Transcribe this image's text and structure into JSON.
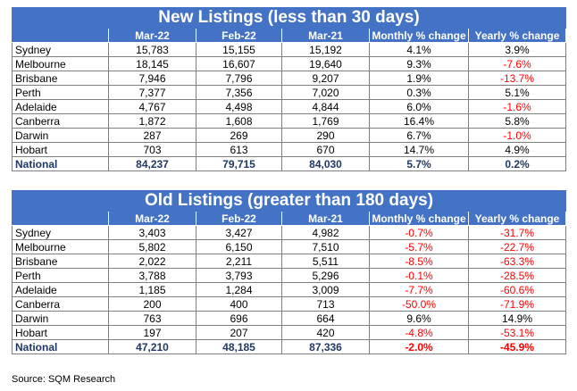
{
  "columns": [
    "",
    "Mar-22",
    "Feb-22",
    "Mar-21",
    "Monthly % change",
    "Yearly % change"
  ],
  "tables": [
    {
      "title": "New Listings (less than 30 days)",
      "rows": [
        {
          "city": "Sydney",
          "values": [
            "15,783",
            "15,155",
            "15,192",
            "4.1%",
            "3.9%"
          ]
        },
        {
          "city": "Melbourne",
          "values": [
            "18,145",
            "16,607",
            "19,640",
            "9.3%",
            "-7.6%"
          ]
        },
        {
          "city": "Brisbane",
          "values": [
            "7,946",
            "7,796",
            "9,207",
            "1.9%",
            "-13.7%"
          ]
        },
        {
          "city": "Perth",
          "values": [
            "7,377",
            "7,356",
            "7,020",
            "0.3%",
            "5.1%"
          ]
        },
        {
          "city": "Adelaide",
          "values": [
            "4,767",
            "4,498",
            "4,844",
            "6.0%",
            "-1.6%"
          ]
        },
        {
          "city": "Canberra",
          "values": [
            "1,872",
            "1,608",
            "1,769",
            "16.4%",
            "5.8%"
          ]
        },
        {
          "city": "Darwin",
          "values": [
            "287",
            "269",
            "290",
            "6.7%",
            "-1.0%"
          ]
        },
        {
          "city": "Hobart",
          "values": [
            "703",
            "613",
            "670",
            "14.7%",
            "4.9%"
          ]
        },
        {
          "city": "National",
          "values": [
            "84,237",
            "79,715",
            "84,030",
            "5.7%",
            "0.2%"
          ]
        }
      ]
    },
    {
      "title": "Old Listings (greater than 180 days)",
      "rows": [
        {
          "city": "Sydney",
          "values": [
            "3,403",
            "3,427",
            "4,982",
            "-0.7%",
            "-31.7%"
          ]
        },
        {
          "city": "Melbourne",
          "values": [
            "5,802",
            "6,150",
            "7,510",
            "-5.7%",
            "-22.7%"
          ]
        },
        {
          "city": "Brisbane",
          "values": [
            "2,022",
            "2,211",
            "5,511",
            "-8.5%",
            "-63.3%"
          ]
        },
        {
          "city": "Perth",
          "values": [
            "3,788",
            "3,793",
            "5,296",
            "-0.1%",
            "-28.5%"
          ]
        },
        {
          "city": "Adelaide",
          "values": [
            "1,185",
            "1,284",
            "3,009",
            "-7.7%",
            "-60.6%"
          ]
        },
        {
          "city": "Canberra",
          "values": [
            "200",
            "400",
            "713",
            "-50.0%",
            "-71.9%"
          ]
        },
        {
          "city": "Darwin",
          "values": [
            "763",
            "696",
            "664",
            "9.6%",
            "14.9%"
          ]
        },
        {
          "city": "Hobart",
          "values": [
            "197",
            "207",
            "420",
            "-4.8%",
            "-53.1%"
          ]
        },
        {
          "city": "National",
          "values": [
            "47,210",
            "48,185",
            "87,336",
            "-2.0%",
            "-45.9%"
          ]
        }
      ]
    }
  ],
  "source": "Source: SQM Research",
  "colors": {
    "header_bg": "#4472c4",
    "negative": "#ff0000",
    "national_text": "#1f3864"
  }
}
